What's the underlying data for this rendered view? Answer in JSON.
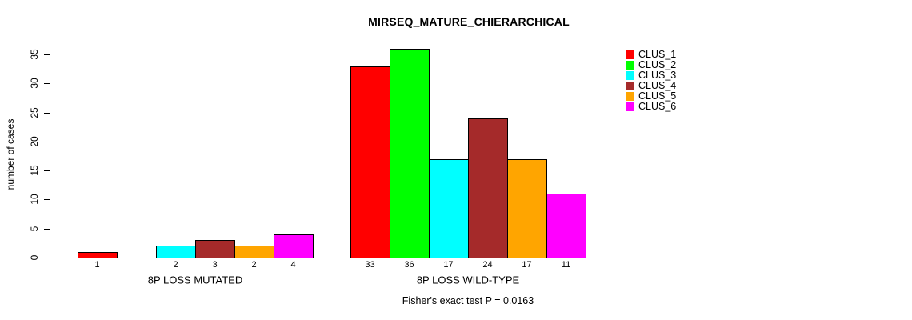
{
  "chart_data": {
    "type": "bar",
    "title": "MIRSEQ_MATURE_CHIERARCHICAL",
    "ylabel": "number of cases",
    "ylim": [
      0,
      35
    ],
    "yticks": [
      0,
      5,
      10,
      15,
      20,
      25,
      30,
      35
    ],
    "grid": false,
    "legend_position": "top-right",
    "background": "#FFFFFF",
    "categories": [
      "8P LOSS MUTATED",
      "8P LOSS WILD-TYPE"
    ],
    "series": [
      {
        "name": "CLUS_1",
        "color": "#FF0000",
        "values": [
          1,
          33
        ]
      },
      {
        "name": "CLUS_2",
        "color": "#00FF00",
        "values": [
          0,
          36
        ]
      },
      {
        "name": "CLUS_3",
        "color": "#00FFFF",
        "values": [
          2,
          17
        ]
      },
      {
        "name": "CLUS_4",
        "color": "#A52A2A",
        "values": [
          3,
          24
        ]
      },
      {
        "name": "CLUS_5",
        "color": "#FFA500",
        "values": [
          2,
          17
        ]
      },
      {
        "name": "CLUS_6",
        "color": "#FF00FF",
        "values": [
          4,
          11
        ]
      }
    ],
    "bar_value_labels": "values shown under each bar; zero bars have no label",
    "annotation": "Fisher's exact test P = 0.0163"
  }
}
